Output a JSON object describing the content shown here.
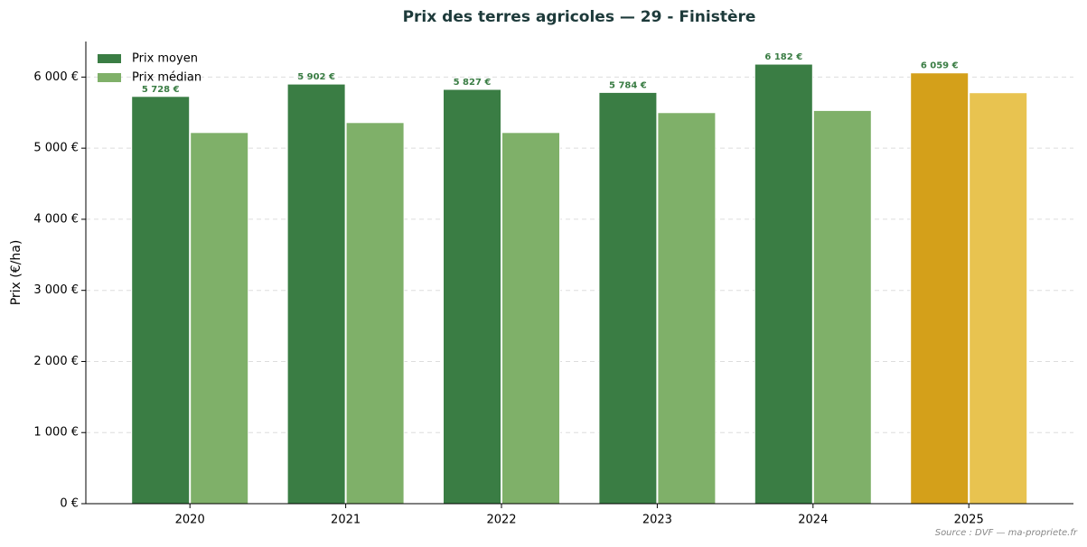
{
  "chart_data": {
    "type": "bar",
    "title": "Prix des terres agricoles — 29 - Finistère",
    "y_label": "Prix (€/ha)",
    "source": "Source : DVF — ma-propriete.fr",
    "categories": [
      "2020",
      "2021",
      "2022",
      "2023",
      "2024",
      "2025"
    ],
    "series": [
      {
        "name": "Prix moyen",
        "color": "#3a7d44",
        "colors": [
          "#3a7d44",
          "#3a7d44",
          "#3a7d44",
          "#3a7d44",
          "#3a7d44",
          "#d4a01a"
        ],
        "values": [
          5728,
          5902,
          5827,
          5784,
          6182,
          6059
        ],
        "value_labels": [
          "5 728 €",
          "5 902 €",
          "5 827 €",
          "5 784 €",
          "6 182 €",
          "6 059 €"
        ]
      },
      {
        "name": "Prix médian",
        "color": "#7fb069",
        "colors": [
          "#7fb069",
          "#7fb069",
          "#7fb069",
          "#7fb069",
          "#7fb069",
          "#e8c350"
        ],
        "values": [
          5220,
          5360,
          5220,
          5500,
          5530,
          5780
        ]
      }
    ],
    "ylim": [
      0,
      6500
    ],
    "yticks": [
      {
        "value": 0,
        "label": "0 €"
      },
      {
        "value": 1000,
        "label": "1 000 €"
      },
      {
        "value": 2000,
        "label": "2 000 €"
      },
      {
        "value": 3000,
        "label": "3 000 €"
      },
      {
        "value": 4000,
        "label": "4 000 €"
      },
      {
        "value": 5000,
        "label": "5 000 €"
      },
      {
        "value": 6000,
        "label": "6 000 €"
      }
    ],
    "grid": true,
    "legend": "upper-left"
  }
}
